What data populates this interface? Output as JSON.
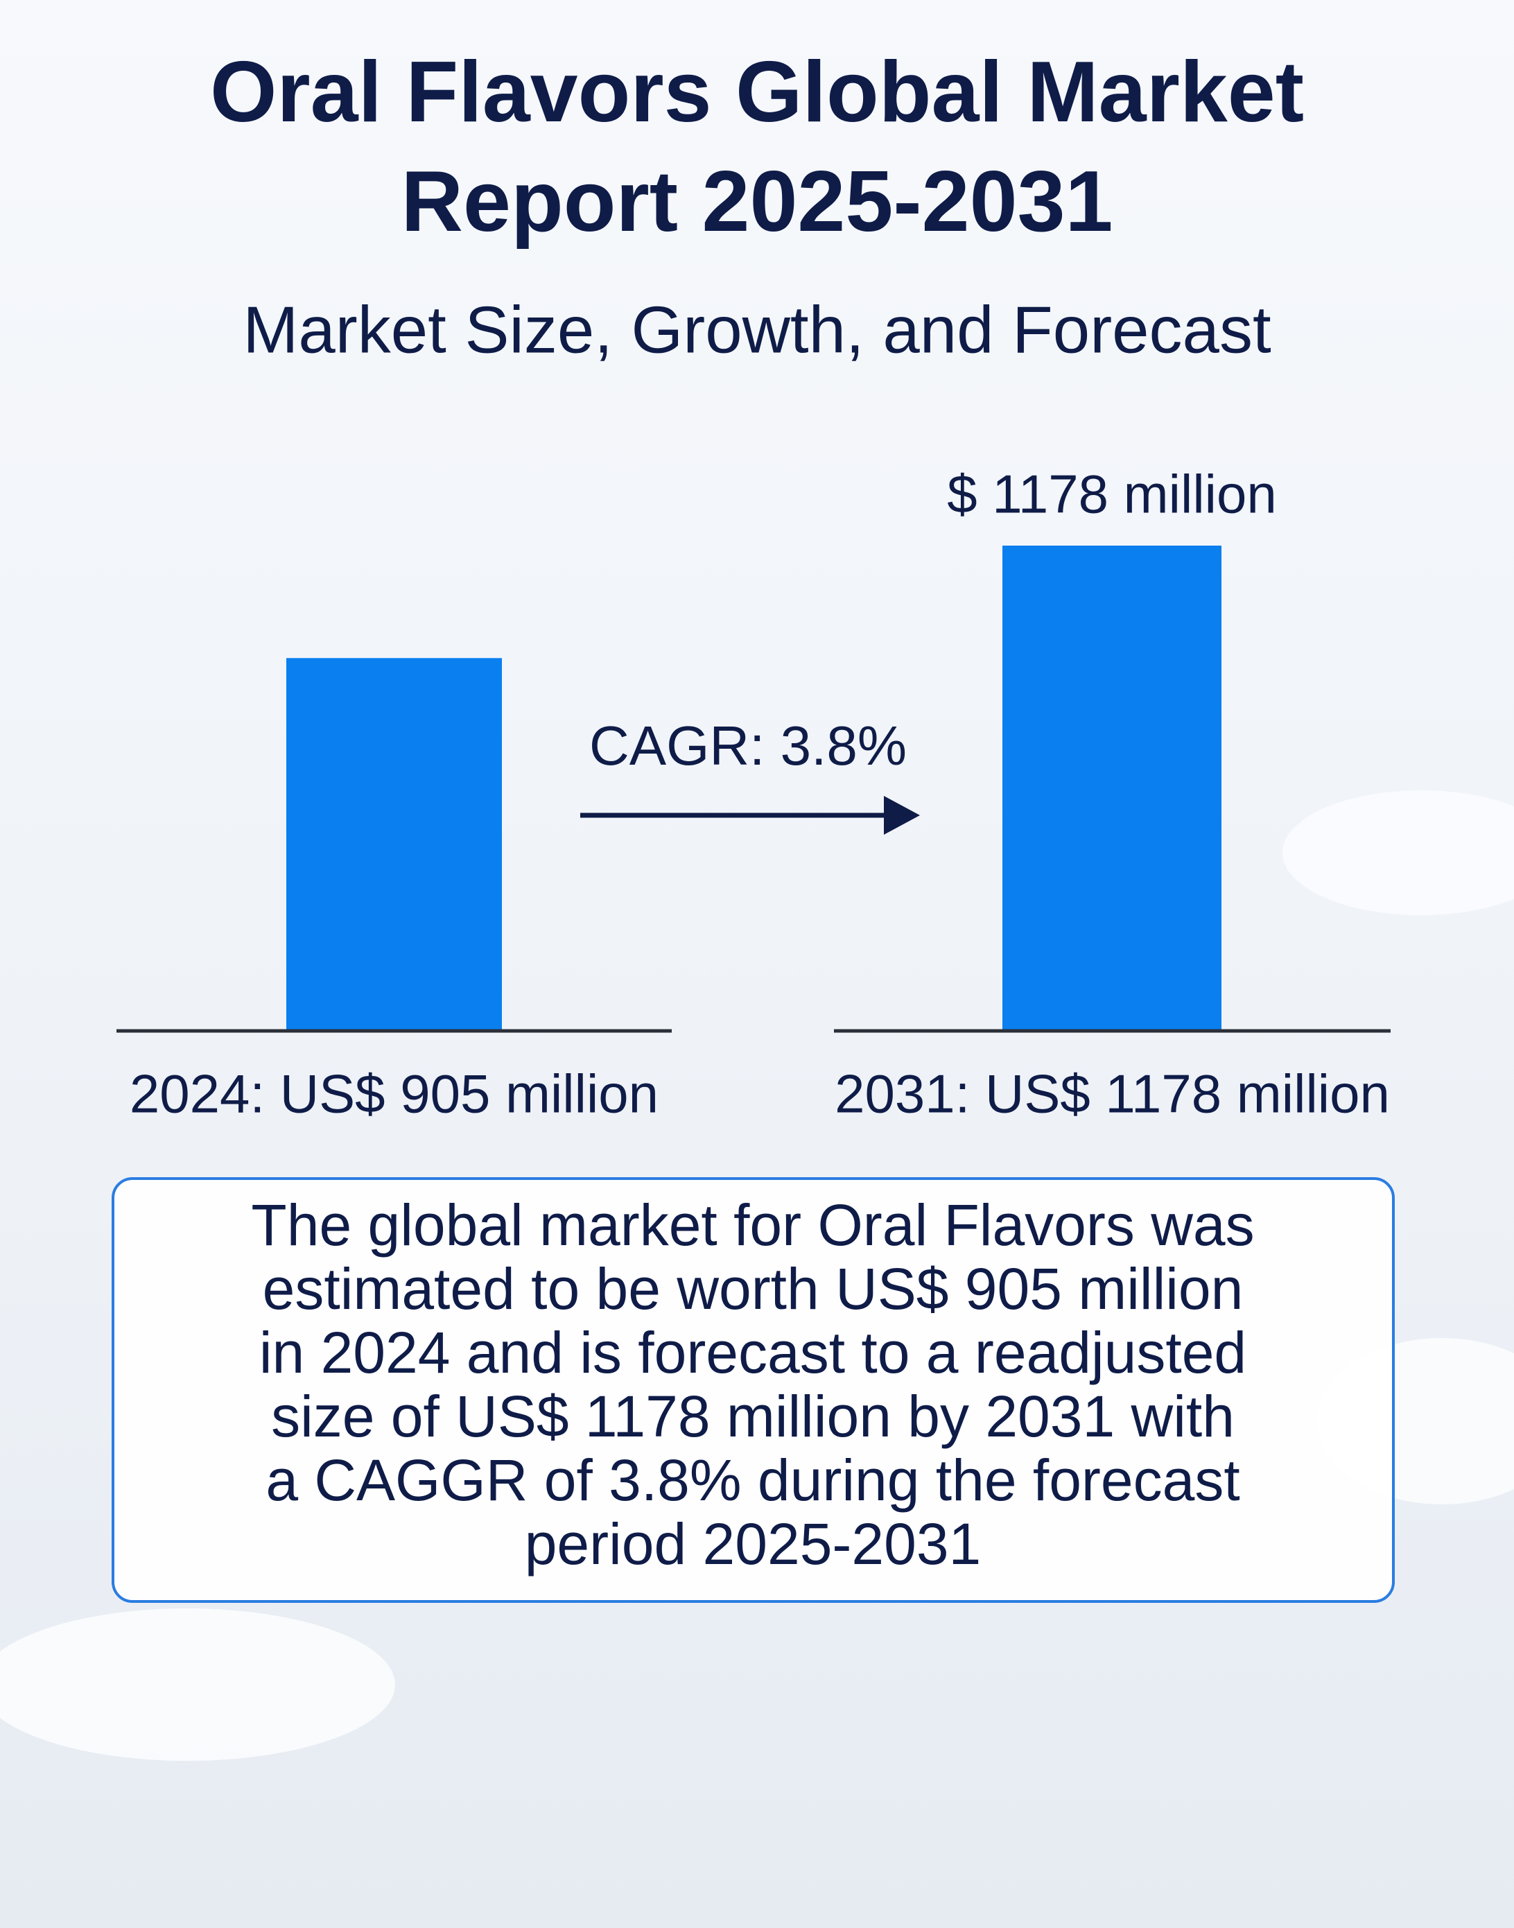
{
  "chart_data": {
    "type": "bar",
    "title_lines": [
      "Oral Flavors Global Market",
      "Report 2025-2031"
    ],
    "subtitle": "Market Size, Growth, and Forecast",
    "categories": [
      "2024: US$ 905 million",
      "2031: US$ 1178 million"
    ],
    "values": [
      905,
      1178
    ],
    "value_labels": [
      null,
      "$ 1178 million"
    ],
    "color": "#0a7ff0",
    "annotation": "CAGR: 3.8%",
    "description_lines": [
      "The global market for Oral Flavors was",
      "estimated to be worth US$ 905 million",
      "in 2024 and is forecast to a readjusted",
      "size of US$ 1178 million by 2031 with",
      "a CAGGR of 3.8% during the forecast",
      "period 2025-2031"
    ]
  }
}
